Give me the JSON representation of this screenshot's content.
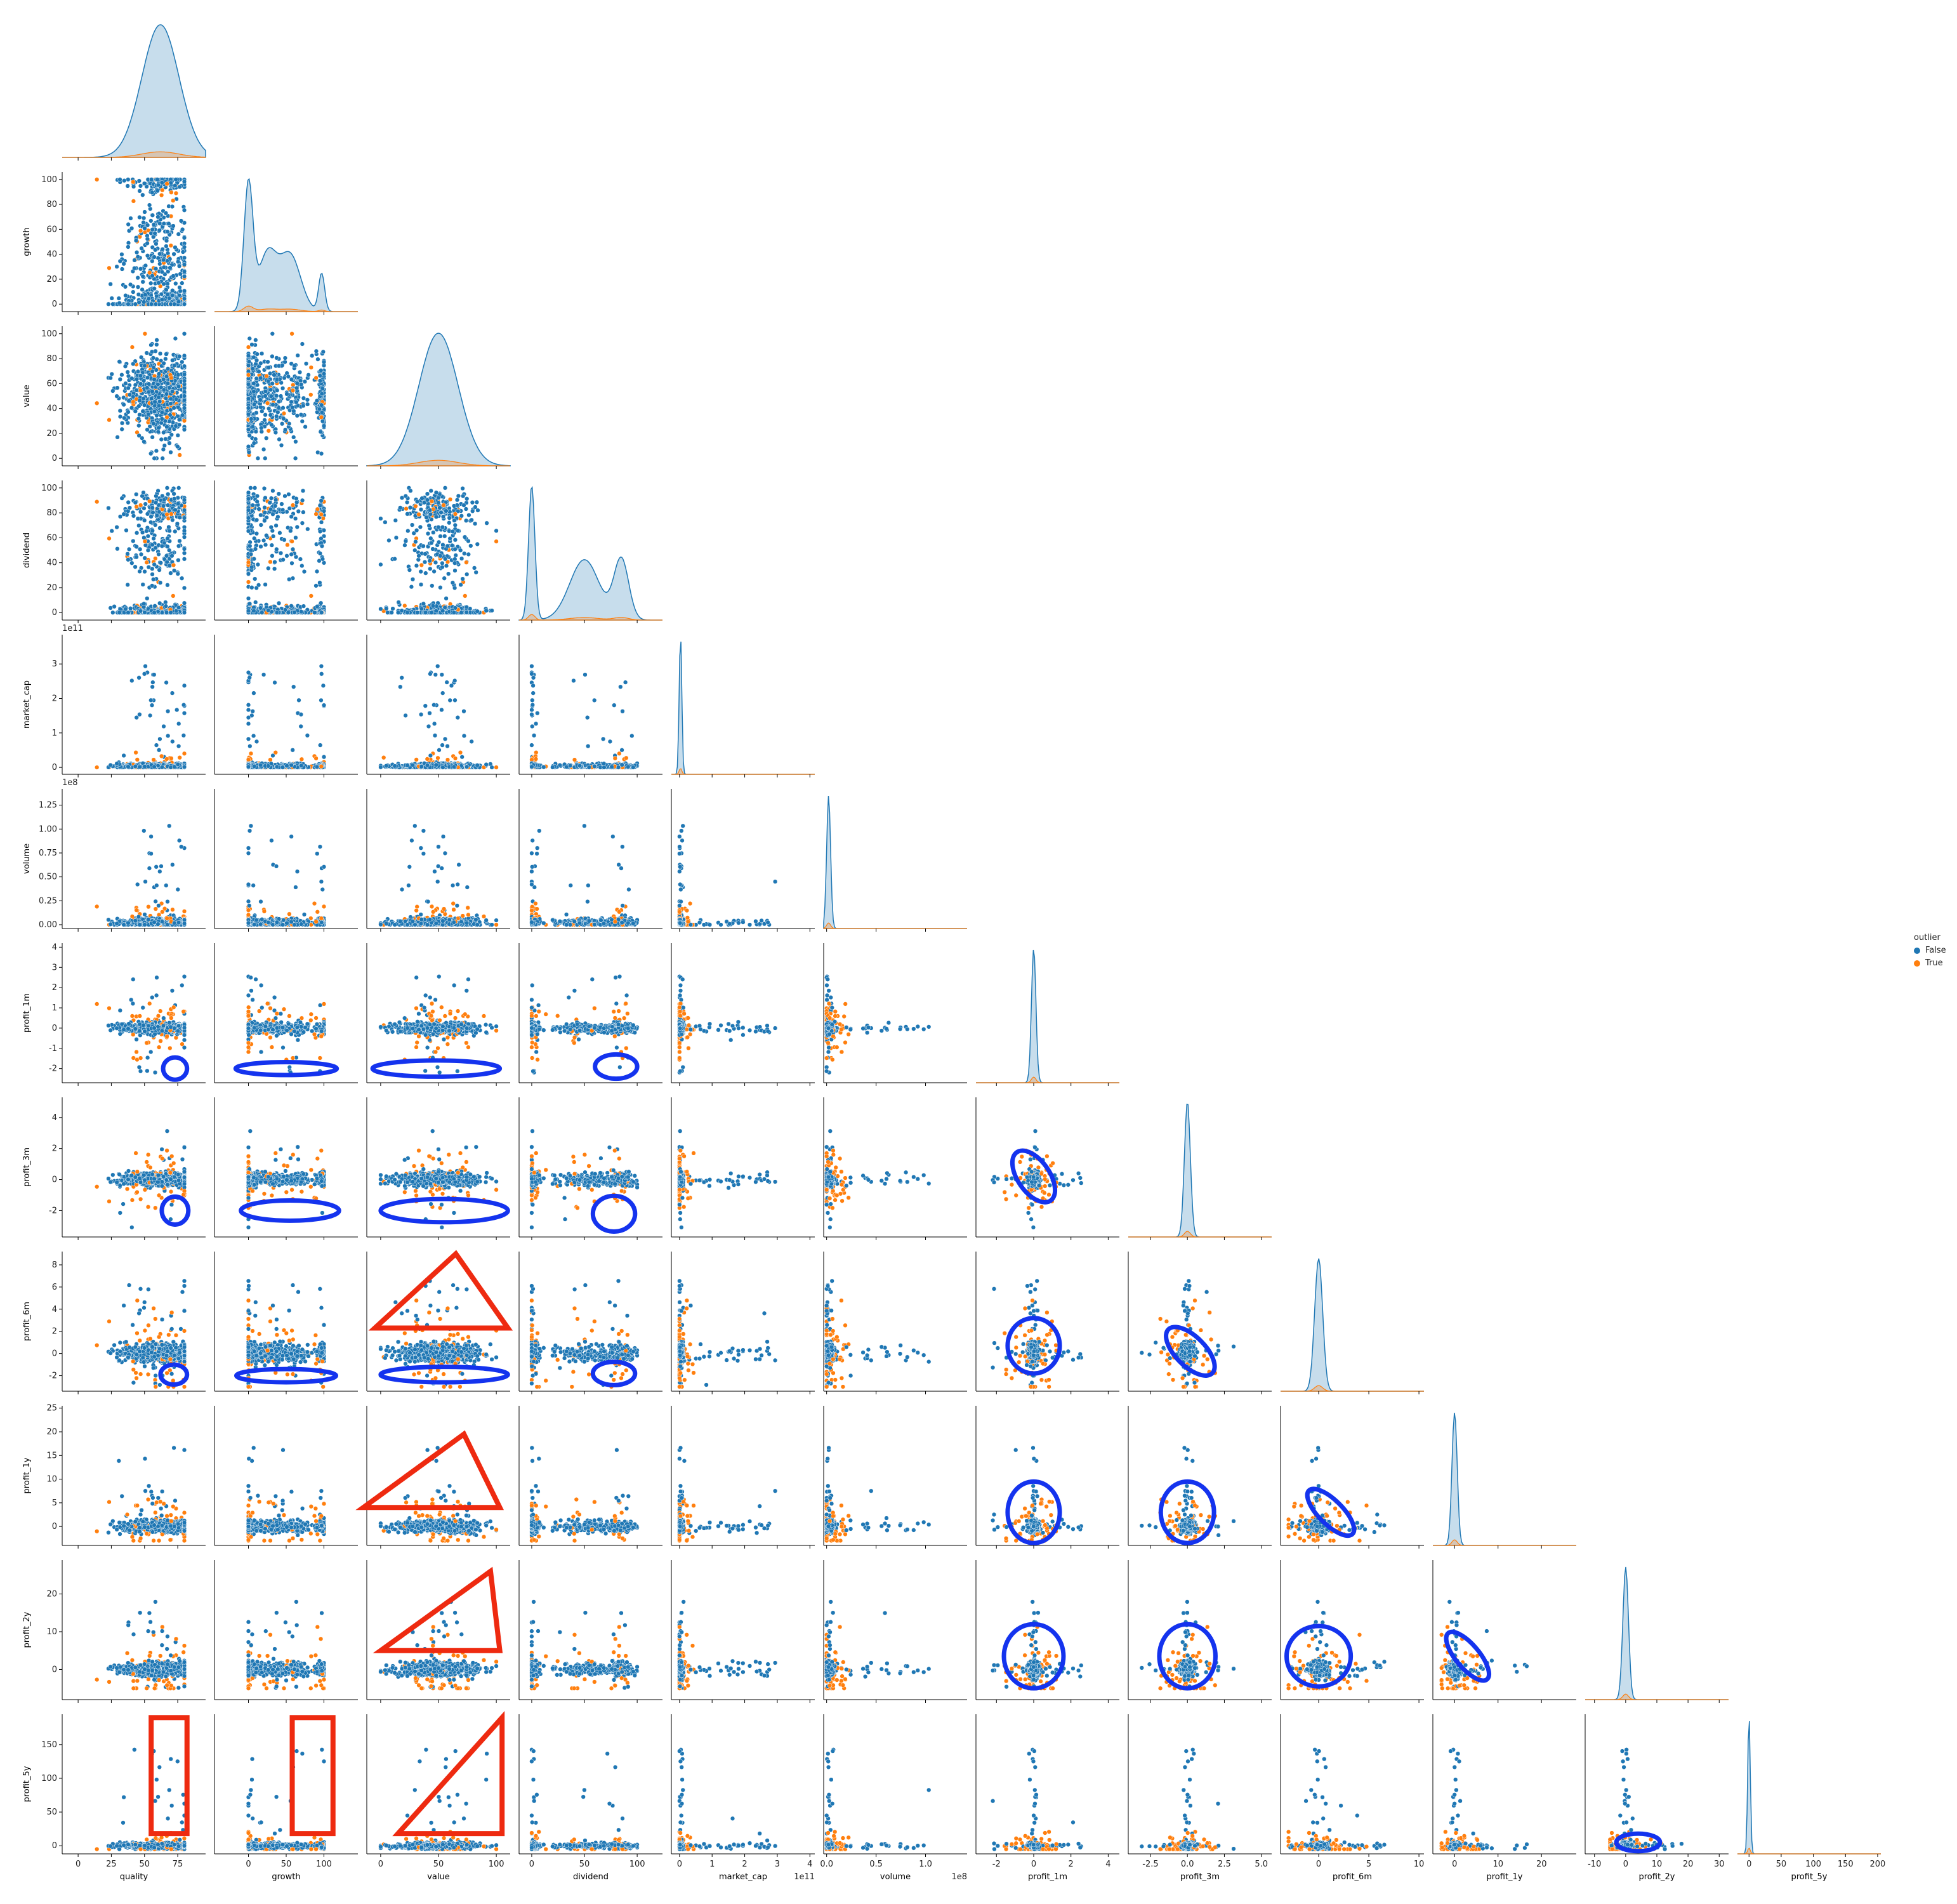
{
  "chart_data": {
    "type": "scatter",
    "layout": "pairplot-lower-triangle",
    "variables": [
      "quality",
      "growth",
      "value",
      "dividend",
      "market_cap",
      "volume",
      "profit_1m",
      "profit_3m",
      "profit_6m",
      "profit_1y",
      "profit_2y",
      "profit_5y"
    ],
    "axes": {
      "quality": {
        "lim": [
          -12,
          96
        ],
        "ticks": [
          "0",
          "25",
          "50",
          "75"
        ],
        "tick_values": [
          0,
          25,
          50,
          75
        ],
        "offset": ""
      },
      "growth": {
        "lim": [
          -45,
          145
        ],
        "ticks": [
          "0",
          "50",
          "100"
        ],
        "tick_values": [
          0,
          50,
          100
        ],
        "offset": ""
      },
      "value": {
        "lim": [
          -12,
          112
        ],
        "ticks": [
          "0",
          "50",
          "100"
        ],
        "tick_values": [
          0,
          50,
          100
        ],
        "offset": ""
      },
      "dividend": {
        "lim": [
          -12,
          124
        ],
        "ticks": [
          "0",
          "50",
          "100"
        ],
        "tick_values": [
          0,
          50,
          100
        ],
        "offset": ""
      },
      "market_cap": {
        "lim": [
          -0.25,
          4.15
        ],
        "ticks": [
          "0",
          "1",
          "2",
          "3",
          "4"
        ],
        "tick_values": [
          0,
          1,
          2,
          3,
          4
        ],
        "offset": "1e11"
      },
      "volume": {
        "lim": [
          -0.03,
          1.42
        ],
        "ticks": [
          "0.0",
          "0.5",
          "1.0"
        ],
        "tick_values": [
          0,
          0.5,
          1.0
        ],
        "offset": "1e8"
      },
      "profit_1m": {
        "lim": [
          -3.1,
          4.6
        ],
        "ticks": [
          "-2",
          "0",
          "2",
          "4"
        ],
        "tick_values": [
          -2,
          0,
          2,
          4
        ],
        "offset": ""
      },
      "profit_3m": {
        "lim": [
          -4.0,
          5.7
        ],
        "ticks": [
          "-2.5",
          "0.0",
          "2.5",
          "5.0"
        ],
        "tick_values": [
          -2.5,
          0,
          2.5,
          5
        ],
        "offset": ""
      },
      "profit_6m": {
        "lim": [
          -3.8,
          10.5
        ],
        "ticks": [
          "0",
          "5",
          "10"
        ],
        "tick_values": [
          0,
          5,
          10
        ],
        "offset": ""
      },
      "profit_1y": {
        "lim": [
          -5,
          28
        ],
        "ticks": [
          "0",
          "10",
          "20"
        ],
        "tick_values": [
          0,
          10,
          20
        ],
        "offset": ""
      },
      "profit_2y": {
        "lim": [
          -13,
          33
        ],
        "ticks": [
          "-10",
          "0",
          "10",
          "20",
          "30"
        ],
        "tick_values": [
          -10,
          0,
          10,
          20,
          30
        ],
        "offset": ""
      },
      "profit_5y": {
        "lim": [
          -18,
          205
        ],
        "ticks": [
          "0",
          "50",
          "100",
          "150",
          "200"
        ],
        "tick_values": [
          0,
          50,
          100,
          150,
          200
        ],
        "offset": ""
      }
    },
    "y_axes": {
      "growth": {
        "lim": [
          -6,
          106
        ],
        "ticks": [
          "0",
          "20",
          "40",
          "60",
          "80",
          "100"
        ],
        "tick_values": [
          0,
          20,
          40,
          60,
          80,
          100
        ],
        "offset": ""
      },
      "value": {
        "lim": [
          -6,
          106
        ],
        "ticks": [
          "0",
          "20",
          "40",
          "60",
          "80",
          "100"
        ],
        "tick_values": [
          0,
          20,
          40,
          60,
          80,
          100
        ],
        "offset": ""
      },
      "dividend": {
        "lim": [
          -6,
          106
        ],
        "ticks": [
          "0",
          "20",
          "40",
          "60",
          "80",
          "100"
        ],
        "tick_values": [
          0,
          20,
          40,
          60,
          80,
          100
        ],
        "offset": ""
      },
      "market_cap": {
        "lim": [
          -0.2,
          3.85
        ],
        "ticks": [
          "0",
          "1",
          "2",
          "3"
        ],
        "tick_values": [
          0,
          1,
          2,
          3
        ],
        "offset": "1e11"
      },
      "volume": {
        "lim": [
          -0.04,
          1.42
        ],
        "ticks": [
          "0.00",
          "0.25",
          "0.50",
          "0.75",
          "1.00",
          "1.25"
        ],
        "tick_values": [
          0,
          0.25,
          0.5,
          0.75,
          1.0,
          1.25
        ],
        "offset": "1e8"
      },
      "profit_1m": {
        "lim": [
          -2.7,
          4.2
        ],
        "ticks": [
          "-2",
          "-1",
          "0",
          "1",
          "2",
          "3",
          "4"
        ],
        "tick_values": [
          -2,
          -1,
          0,
          1,
          2,
          3,
          4
        ],
        "offset": ""
      },
      "profit_3m": {
        "lim": [
          -3.7,
          5.3
        ],
        "ticks": [
          "-2",
          "0",
          "2",
          "4"
        ],
        "tick_values": [
          -2,
          0,
          2,
          4
        ],
        "offset": ""
      },
      "profit_6m": {
        "lim": [
          -3.4,
          9.2
        ],
        "ticks": [
          "-2",
          "0",
          "2",
          "4",
          "6",
          "8"
        ],
        "tick_values": [
          -2,
          0,
          2,
          4,
          6,
          8
        ],
        "offset": ""
      },
      "profit_1y": {
        "lim": [
          -4,
          25.5
        ],
        "ticks": [
          "0",
          "5",
          "10",
          "15",
          "20",
          "25"
        ],
        "tick_values": [
          0,
          5,
          10,
          15,
          20,
          25
        ],
        "offset": ""
      },
      "profit_2y": {
        "lim": [
          -8,
          29
        ],
        "ticks": [
          "0",
          "10",
          "20"
        ],
        "tick_values": [
          0,
          10,
          20
        ],
        "offset": ""
      },
      "profit_5y": {
        "lim": [
          -12,
          195
        ],
        "ticks": [
          "0",
          "50",
          "100",
          "150"
        ],
        "tick_values": [
          0,
          50,
          100,
          150
        ],
        "offset": ""
      }
    },
    "diagonal": "kde",
    "hue": {
      "title": "outlier",
      "levels": [
        {
          "name": "False",
          "color": "#1f77b4"
        },
        {
          "name": "True",
          "color": "#ff7f0e"
        }
      ]
    },
    "distributions": {
      "quality": {
        "type": "normal",
        "center": 62,
        "spread": 14,
        "range": [
          0,
          80
        ]
      },
      "growth": {
        "type": "multimodal",
        "modes": [
          [
            0,
            6,
            1.0
          ],
          [
            25,
            12,
            0.45
          ],
          [
            55,
            14,
            0.45
          ],
          [
            97,
            4,
            0.3
          ]
        ],
        "range": [
          0,
          100
        ]
      },
      "value": {
        "type": "normal",
        "center": 50,
        "spread": 17,
        "range": [
          0,
          100
        ]
      },
      "dividend": {
        "type": "multimodal",
        "modes": [
          [
            0,
            3,
            1.0
          ],
          [
            50,
            14,
            0.45
          ],
          [
            85,
            7,
            0.45
          ]
        ],
        "range": [
          0,
          100
        ]
      },
      "market_cap": {
        "type": "spike",
        "center": 0.03,
        "spread": 0.04,
        "range": [
          0,
          3.7
        ]
      },
      "volume": {
        "type": "spike",
        "center": 0.02,
        "spread": 0.02,
        "range": [
          0,
          1.35
        ]
      },
      "profit_1m": {
        "type": "spike",
        "center": 0.0,
        "spread": 0.12,
        "range": [
          -2.5,
          4
        ]
      },
      "profit_3m": {
        "type": "spike",
        "center": 0.0,
        "spread": 0.2,
        "range": [
          -3.3,
          5
        ]
      },
      "profit_6m": {
        "type": "spike",
        "center": 0.0,
        "spread": 0.4,
        "range": [
          -3,
          9
        ]
      },
      "profit_1y": {
        "type": "spike",
        "center": 0.0,
        "spread": 0.6,
        "range": [
          -3,
          24
        ]
      },
      "profit_2y": {
        "type": "spike",
        "center": 0.0,
        "spread": 0.9,
        "range": [
          -5,
          28
        ]
      },
      "profit_5y": {
        "type": "spike",
        "center": 0.0,
        "spread": 2.0,
        "range": [
          -5,
          190
        ]
      }
    },
    "annotations": [
      {
        "row": "profit_1m",
        "col": "quality",
        "shape": "ellipse",
        "color": "#1433ee",
        "center": [
          73,
          -2.0
        ],
        "radius": [
          9,
          0.55
        ]
      },
      {
        "row": "profit_1m",
        "col": "growth",
        "shape": "ellipse",
        "color": "#1433ee",
        "center": [
          50,
          -2.0
        ],
        "radius": [
          67,
          0.32
        ]
      },
      {
        "row": "profit_1m",
        "col": "value",
        "shape": "ellipse",
        "color": "#1433ee",
        "center": [
          48,
          -2.0
        ],
        "radius": [
          55,
          0.4
        ]
      },
      {
        "row": "profit_1m",
        "col": "dividend",
        "shape": "ellipse",
        "color": "#1433ee",
        "center": [
          80,
          -1.9
        ],
        "radius": [
          20,
          0.6
        ]
      },
      {
        "row": "profit_3m",
        "col": "quality",
        "shape": "ellipse",
        "color": "#1433ee",
        "center": [
          73,
          -2.0
        ],
        "radius": [
          10,
          0.9
        ]
      },
      {
        "row": "profit_3m",
        "col": "growth",
        "shape": "ellipse",
        "color": "#1433ee",
        "center": [
          55,
          -2.0
        ],
        "radius": [
          65,
          0.65
        ]
      },
      {
        "row": "profit_3m",
        "col": "value",
        "shape": "ellipse",
        "color": "#1433ee",
        "center": [
          55,
          -2.0
        ],
        "radius": [
          55,
          0.75
        ]
      },
      {
        "row": "profit_3m",
        "col": "dividend",
        "shape": "ellipse",
        "color": "#1433ee",
        "center": [
          78,
          -2.2
        ],
        "radius": [
          20,
          1.15
        ]
      },
      {
        "row": "profit_3m",
        "col": "profit_1m",
        "shape": "ellipse",
        "color": "#1433ee",
        "center": [
          0.0,
          0.2
        ],
        "radius": [
          0.85,
          1.9
        ],
        "rotate": 35
      },
      {
        "row": "profit_6m",
        "col": "quality",
        "shape": "ellipse",
        "color": "#1433ee",
        "center": [
          72,
          -1.9
        ],
        "radius": [
          10,
          0.9
        ]
      },
      {
        "row": "profit_6m",
        "col": "growth",
        "shape": "ellipse",
        "color": "#1433ee",
        "center": [
          50,
          -2.0
        ],
        "radius": [
          66,
          0.6
        ]
      },
      {
        "row": "profit_6m",
        "col": "value",
        "shape": "ellipse",
        "color": "#1433ee",
        "center": [
          55,
          -1.9
        ],
        "radius": [
          55,
          0.7
        ]
      },
      {
        "row": "profit_6m",
        "col": "dividend",
        "shape": "ellipse",
        "color": "#1433ee",
        "center": [
          78,
          -1.8
        ],
        "radius": [
          20,
          1.05
        ]
      },
      {
        "row": "profit_6m",
        "col": "profit_1m",
        "shape": "ellipse",
        "color": "#1433ee",
        "center": [
          0.0,
          0.7
        ],
        "radius": [
          1.4,
          2.5
        ]
      },
      {
        "row": "profit_6m",
        "col": "profit_3m",
        "shape": "ellipse",
        "color": "#1433ee",
        "center": [
          0.2,
          0.2
        ],
        "radius": [
          1.0,
          2.8
        ],
        "rotate": 45
      },
      {
        "row": "profit_1y",
        "col": "profit_1m",
        "shape": "ellipse",
        "color": "#1433ee",
        "center": [
          0.0,
          3.0
        ],
        "radius": [
          1.4,
          6.5
        ]
      },
      {
        "row": "profit_1y",
        "col": "profit_3m",
        "shape": "ellipse",
        "color": "#1433ee",
        "center": [
          0.0,
          3.0
        ],
        "radius": [
          1.8,
          6.5
        ]
      },
      {
        "row": "profit_1y",
        "col": "profit_6m",
        "shape": "ellipse",
        "color": "#1433ee",
        "center": [
          1.2,
          3.0
        ],
        "radius": [
          1.2,
          6.5
        ],
        "rotate": 45
      },
      {
        "row": "profit_2y",
        "col": "profit_1m",
        "shape": "ellipse",
        "color": "#1433ee",
        "center": [
          0.0,
          3.5
        ],
        "radius": [
          1.6,
          8.5
        ]
      },
      {
        "row": "profit_2y",
        "col": "profit_3m",
        "shape": "ellipse",
        "color": "#1433ee",
        "center": [
          0.0,
          3.5
        ],
        "radius": [
          1.9,
          8.5
        ]
      },
      {
        "row": "profit_2y",
        "col": "profit_6m",
        "shape": "ellipse",
        "color": "#1433ee",
        "center": [
          0.0,
          3.5
        ],
        "radius": [
          3.2,
          8.0
        ]
      },
      {
        "row": "profit_2y",
        "col": "profit_1y",
        "shape": "ellipse",
        "color": "#1433ee",
        "center": [
          3.0,
          3.5
        ],
        "radius": [
          2.7,
          8.0
        ],
        "rotate": 40
      },
      {
        "row": "profit_5y",
        "col": "profit_2y",
        "shape": "ellipse",
        "color": "#1433ee",
        "center": [
          4.0,
          5.0
        ],
        "radius": [
          7.0,
          13.0
        ]
      },
      {
        "row": "profit_6m",
        "col": "value",
        "shape": "triangle",
        "color": "#ee2a10",
        "points": [
          [
            -5,
            2.3
          ],
          [
            65,
            9.0
          ],
          [
            110,
            2.3
          ]
        ]
      },
      {
        "row": "profit_1y",
        "col": "value",
        "shape": "triangle",
        "color": "#ee2a10",
        "points": [
          [
            -15,
            4.0
          ],
          [
            72,
            19.5
          ],
          [
            103,
            4.0
          ]
        ]
      },
      {
        "row": "profit_2y",
        "col": "value",
        "shape": "triangle",
        "color": "#ee2a10",
        "points": [
          [
            0,
            5.0
          ],
          [
            95,
            26.0
          ],
          [
            103,
            5.0
          ]
        ]
      },
      {
        "row": "profit_5y",
        "col": "value",
        "shape": "triangle",
        "color": "#ee2a10",
        "points": [
          [
            15,
            18
          ],
          [
            105,
            190
          ],
          [
            105,
            18
          ]
        ]
      },
      {
        "row": "profit_5y",
        "col": "quality",
        "shape": "rect",
        "color": "#ee2a10",
        "x": [
          55,
          82
        ],
        "y": [
          18,
          190
        ]
      },
      {
        "row": "profit_5y",
        "col": "growth",
        "shape": "rect",
        "color": "#ee2a10",
        "x": [
          58,
          112
        ],
        "y": [
          18,
          190
        ]
      }
    ]
  }
}
